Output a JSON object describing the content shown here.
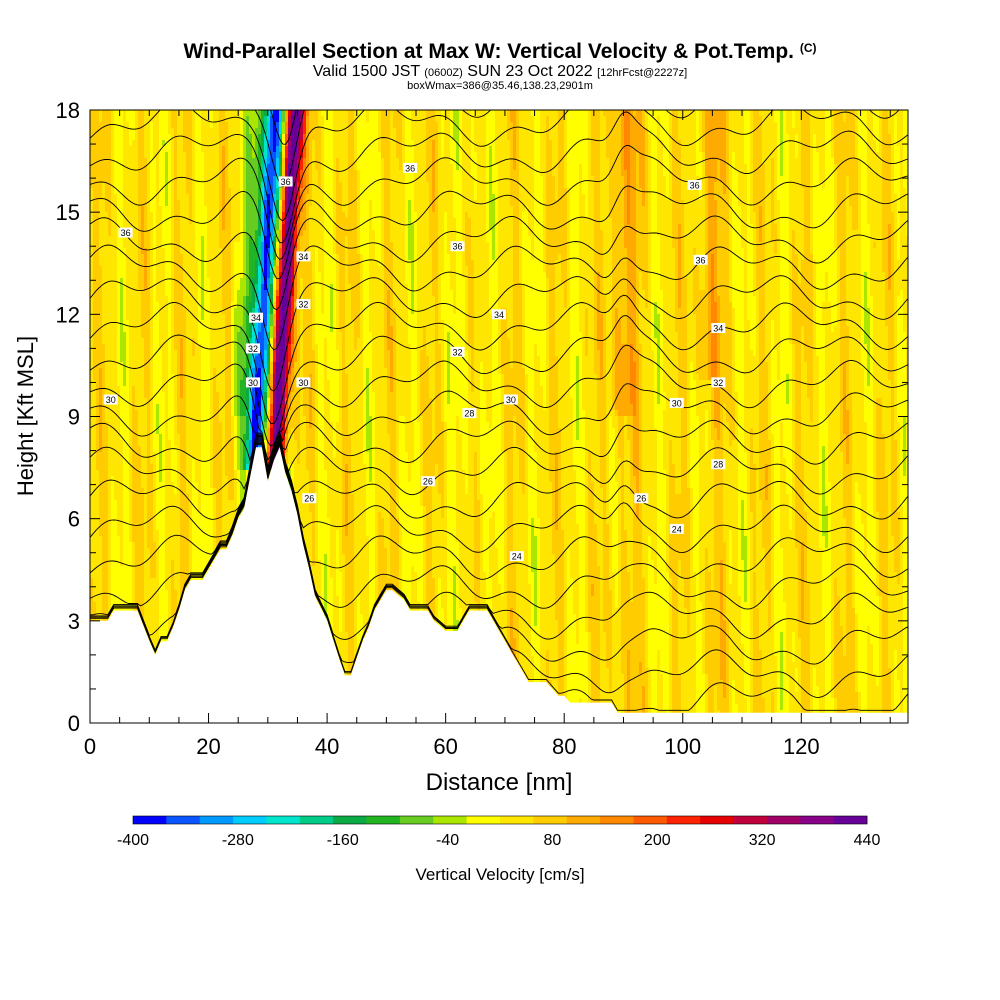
{
  "title": {
    "main": "Wind-Parallel Section at Max W: Vertical Velocity & Pot.Temp.",
    "copyright": "(C)",
    "valid_prefix": "Valid 1500 JST",
    "valid_utc": "(0600Z)",
    "valid_date": "SUN 23 Oct 2022",
    "forecast": "[12hrFcst@2227z]",
    "box_info": "boxWmax=386@35.46,138.23,2901m"
  },
  "chart_data": {
    "type": "heatmap",
    "xlabel": "Distance [nm]",
    "ylabel": "Height [Kft MSL]",
    "xlim": [
      0,
      138
    ],
    "ylim": [
      0,
      18
    ],
    "x_ticks": [
      0,
      20,
      40,
      60,
      80,
      100,
      120
    ],
    "y_ticks": [
      0,
      3,
      6,
      9,
      12,
      15,
      18
    ],
    "colorbar": {
      "label": "Vertical Velocity [cm/s]",
      "min": -400,
      "max": 440,
      "tick_labels": [
        "-400",
        "-280",
        "-160",
        "-40",
        "80",
        "200",
        "320",
        "440"
      ],
      "colors": [
        "#0000ff",
        "#0a55ff",
        "#0099ff",
        "#00ccff",
        "#00e6cc",
        "#00cc88",
        "#0caa44",
        "#22b422",
        "#66cc22",
        "#aae600",
        "#ffff00",
        "#ffe600",
        "#ffcc00",
        "#ffaa00",
        "#ff8800",
        "#ff5a00",
        "#ff2200",
        "#e60000",
        "#c0003c",
        "#a00066",
        "#880088",
        "#660099"
      ]
    },
    "isentrope_labels": [
      {
        "x": 6,
        "y": 14.4,
        "text": "36"
      },
      {
        "x": 54,
        "y": 16.3,
        "text": "36"
      },
      {
        "x": 102,
        "y": 15.8,
        "text": "36"
      },
      {
        "x": 62,
        "y": 14.0,
        "text": "36"
      },
      {
        "x": 103,
        "y": 13.6,
        "text": "36"
      },
      {
        "x": 33,
        "y": 15.9,
        "text": "36"
      },
      {
        "x": 36,
        "y": 13.7,
        "text": "34"
      },
      {
        "x": 28,
        "y": 11.9,
        "text": "34"
      },
      {
        "x": 69,
        "y": 12.0,
        "text": "34"
      },
      {
        "x": 106,
        "y": 11.6,
        "text": "34"
      },
      {
        "x": 36,
        "y": 12.3,
        "text": "32"
      },
      {
        "x": 27.5,
        "y": 11.0,
        "text": "32"
      },
      {
        "x": 62,
        "y": 10.9,
        "text": "32"
      },
      {
        "x": 106,
        "y": 10.0,
        "text": "32"
      },
      {
        "x": 3.5,
        "y": 9.5,
        "text": "30"
      },
      {
        "x": 27.5,
        "y": 10.0,
        "text": "30"
      },
      {
        "x": 36,
        "y": 10.0,
        "text": "30"
      },
      {
        "x": 71,
        "y": 9.5,
        "text": "30"
      },
      {
        "x": 99,
        "y": 9.4,
        "text": "30"
      },
      {
        "x": 64,
        "y": 9.1,
        "text": "28"
      },
      {
        "x": 106,
        "y": 7.6,
        "text": "28"
      },
      {
        "x": 37,
        "y": 6.6,
        "text": "26"
      },
      {
        "x": 57,
        "y": 7.1,
        "text": "26"
      },
      {
        "x": 93,
        "y": 6.6,
        "text": "26"
      },
      {
        "x": 99,
        "y": 5.7,
        "text": "24"
      },
      {
        "x": 72,
        "y": 4.9,
        "text": "24"
      }
    ],
    "series": [
      {
        "type": "terrain",
        "x": [
          0,
          3,
          4,
          8,
          10,
          11,
          12,
          13,
          14,
          15,
          16,
          17,
          19,
          20,
          21,
          22,
          23,
          24,
          25,
          26,
          27,
          28,
          29,
          30,
          31,
          32,
          33,
          34,
          35,
          36,
          37,
          38,
          40,
          42,
          43,
          44,
          45,
          46,
          47,
          48,
          49,
          50,
          51,
          53,
          54,
          55,
          56,
          57,
          58,
          60,
          61,
          62,
          63,
          64,
          65,
          67,
          68,
          69,
          70,
          71,
          72,
          73,
          74,
          75,
          76,
          77,
          78,
          79,
          80,
          81,
          82,
          83,
          86,
          88,
          89,
          90,
          91,
          93,
          95,
          96,
          97,
          98,
          99,
          100,
          101,
          102,
          103,
          104,
          105,
          106,
          107,
          108,
          110,
          112,
          114,
          116,
          118,
          120,
          122,
          124,
          126,
          128,
          130,
          132,
          134,
          136,
          138
        ],
        "y": [
          3,
          3,
          3.3,
          3.3,
          2.4,
          2.0,
          2.4,
          2.4,
          2.8,
          3.3,
          3.9,
          4.2,
          4.2,
          4.5,
          4.8,
          5.1,
          5.1,
          5.5,
          6.0,
          6.3,
          7.2,
          8.1,
          8.1,
          7.1,
          7.7,
          8.1,
          7.3,
          6.8,
          6.1,
          5.2,
          4.5,
          3.7,
          3.0,
          1.9,
          1.4,
          1.4,
          1.9,
          2.4,
          2.8,
          3.3,
          3.6,
          3.9,
          3.9,
          3.6,
          3.3,
          3.3,
          3.3,
          3.3,
          3.0,
          2.7,
          2.7,
          2.7,
          3.0,
          3.3,
          3.3,
          3.3,
          3.0,
          2.7,
          2.4,
          2.1,
          1.8,
          1.5,
          1.2,
          1.2,
          1.2,
          1.2,
          1.0,
          0.8,
          0.8,
          0.6,
          0.6,
          0.6,
          0.6,
          0.6,
          0.3,
          0.3,
          0.3,
          0.3,
          0.3,
          0.3,
          0.3,
          0.3,
          0.3,
          0.3,
          0.3,
          0.3,
          0.3,
          0.3,
          0.3,
          0.3,
          0.3,
          0.3,
          0.3,
          0.3,
          0.3,
          0.3,
          0.3,
          0.3,
          0.3,
          0.3,
          0.3,
          0.3,
          0.3,
          0.3,
          0.3,
          0.3,
          0.3
        ]
      }
    ]
  }
}
